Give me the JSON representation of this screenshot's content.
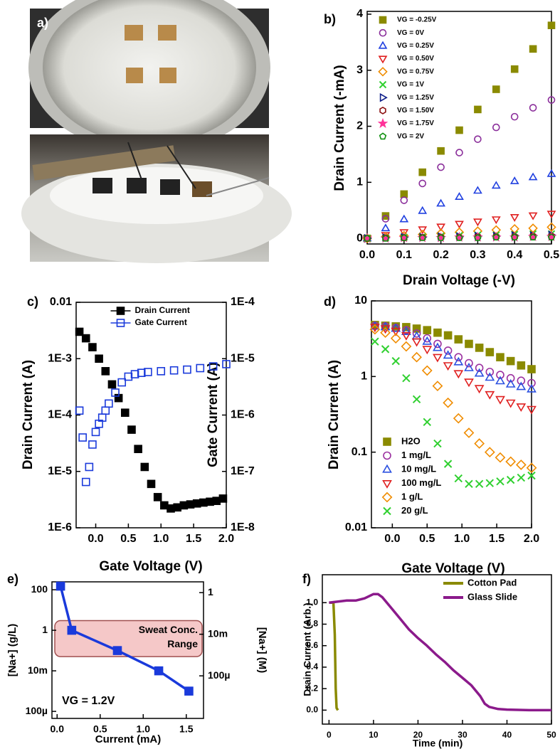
{
  "photo_label": "a)",
  "chart_data": [
    {
      "type": "scatter",
      "label": "b)",
      "xlabel": "Drain Voltage (-V)",
      "ylabel": "Drain Current (-mA)",
      "x": [
        0,
        0.05,
        0.1,
        0.15,
        0.2,
        0.25,
        0.3,
        0.35,
        0.4,
        0.45,
        0.5
      ],
      "xlim": [
        0,
        0.5
      ],
      "ylim": [
        -0.1,
        4.05
      ],
      "xticks": [
        {
          "value": 0,
          "label": "0.0"
        },
        0.1,
        0.2,
        0.3,
        0.4,
        0.5
      ],
      "yticks": [
        0,
        1,
        2,
        3,
        4
      ],
      "legend": "upper left",
      "series": [
        {
          "name": "VG = -0.25V",
          "color": "#8a8a00",
          "marker": "square",
          "filled": true,
          "values": [
            0,
            0.4,
            0.79,
            1.18,
            1.56,
            1.93,
            2.3,
            2.66,
            3.02,
            3.38,
            3.8
          ]
        },
        {
          "name": "VG = 0V",
          "color": "#8b2f9b",
          "marker": "circle",
          "filled": false,
          "values": [
            0,
            0.35,
            0.68,
            0.98,
            1.27,
            1.53,
            1.77,
            1.98,
            2.17,
            2.33,
            2.47
          ]
        },
        {
          "name": "VG = 0.25V",
          "color": "#2040e0",
          "marker": "triangle-up",
          "filled": false,
          "values": [
            0,
            0.18,
            0.34,
            0.49,
            0.62,
            0.74,
            0.85,
            0.94,
            1.02,
            1.09,
            1.15
          ]
        },
        {
          "name": "VG = 0.50V",
          "color": "#e02020",
          "marker": "triangle-down",
          "filled": false,
          "values": [
            0,
            0.06,
            0.11,
            0.16,
            0.21,
            0.26,
            0.3,
            0.34,
            0.38,
            0.41,
            0.44
          ]
        },
        {
          "name": "VG = 0.75V",
          "color": "#f08c00",
          "marker": "diamond",
          "filled": false,
          "values": [
            0,
            0.03,
            0.05,
            0.07,
            0.09,
            0.11,
            0.13,
            0.15,
            0.17,
            0.18,
            0.2
          ]
        },
        {
          "name": "VG = 1V",
          "color": "#30d030",
          "marker": "x",
          "filled": false,
          "values": [
            0,
            0.01,
            0.02,
            0.03,
            0.04,
            0.05,
            0.06,
            0.06,
            0.07,
            0.08,
            0.08
          ]
        },
        {
          "name": "VG = 1.25V",
          "color": "#10208a",
          "marker": "triangle-right",
          "filled": false,
          "values": [
            0,
            0.01,
            0.02,
            0.02,
            0.03,
            0.03,
            0.04,
            0.04,
            0.05,
            0.05,
            0.06
          ]
        },
        {
          "name": "VG = 1.50V",
          "color": "#8b1010",
          "marker": "hexagon",
          "filled": false,
          "values": [
            0,
            0.01,
            0.01,
            0.02,
            0.02,
            0.02,
            0.03,
            0.03,
            0.03,
            0.04,
            0.04
          ]
        },
        {
          "name": "VG = 1.75V",
          "color": "#ff3399",
          "marker": "star",
          "filled": true,
          "values": [
            0,
            0,
            0.01,
            0.01,
            0.01,
            0.02,
            0.02,
            0.02,
            0.02,
            0.03,
            0.03
          ]
        },
        {
          "name": "VG = 2V",
          "color": "#109010",
          "marker": "pentagon",
          "filled": false,
          "values": [
            0,
            0,
            0.01,
            0.01,
            0.01,
            0.01,
            0.01,
            0.02,
            0.02,
            0.02,
            0.02
          ]
        }
      ]
    },
    {
      "type": "scatter",
      "label": "c)",
      "xlabel": "Gate Voltage (V)",
      "ylabel": "Drain Current (A)",
      "y2label": "Gate Current (A)",
      "xlim": [
        -0.3,
        2.0
      ],
      "ylim": [
        1e-06,
        0.01
      ],
      "y2lim": [
        1e-08,
        0.0001
      ],
      "ylog": true,
      "y2log": true,
      "xticks": [
        {
          "value": 0,
          "label": "0.0"
        },
        0.5,
        {
          "value": 1,
          "label": "1.0"
        },
        1.5,
        {
          "value": 2,
          "label": "2.0"
        }
      ],
      "yticks": [
        0.01,
        {
          "value": 0.001,
          "label": "1E-3"
        },
        {
          "value": 0.0001,
          "label": "1E-4"
        },
        {
          "value": 1e-05,
          "label": "1E-5"
        },
        {
          "value": 1e-06,
          "label": "1E-6"
        }
      ],
      "y2ticks": [
        {
          "value": 0.0001,
          "label": "1E-4"
        },
        {
          "value": 1e-05,
          "label": "1E-5"
        },
        {
          "value": 1e-06,
          "label": "1E-6"
        },
        {
          "value": 1e-07,
          "label": "1E-7"
        },
        {
          "value": 1e-08,
          "label": "1E-8"
        }
      ],
      "legend": "upper center",
      "series": [
        {
          "name": "Drain Current",
          "color": "#000000",
          "marker": "square",
          "filled": true,
          "x": [
            -0.25,
            -0.15,
            -0.05,
            0.05,
            0.15,
            0.25,
            0.35,
            0.45,
            0.55,
            0.65,
            0.75,
            0.85,
            0.95,
            1.05,
            1.15,
            1.25,
            1.35,
            1.45,
            1.55,
            1.65,
            1.75,
            1.85,
            1.95
          ],
          "values": [
            0.003,
            0.0023,
            0.0016,
            0.001,
            0.0006,
            0.00035,
            0.0002,
            0.00011,
            5.5e-05,
            2.5e-05,
            1.2e-05,
            6e-06,
            3.5e-06,
            2.5e-06,
            2.2e-06,
            2.3e-06,
            2.5e-06,
            2.6e-06,
            2.7e-06,
            2.8e-06,
            2.9e-06,
            3e-06,
            3.3e-06
          ]
        },
        {
          "name": "Gate Current",
          "color": "#1a3adb",
          "marker": "square",
          "filled": false,
          "axis": "y2",
          "x": [
            -0.25,
            -0.2,
            -0.15,
            -0.1,
            -0.05,
            0,
            0.05,
            0.1,
            0.15,
            0.2,
            0.3,
            0.4,
            0.5,
            0.6,
            0.7,
            0.8,
            1.0,
            1.2,
            1.4,
            1.6,
            1.8,
            2.0
          ],
          "values": [
            1.2e-06,
            4e-07,
            6.5e-08,
            1.2e-07,
            3e-07,
            5e-07,
            7e-07,
            9e-07,
            1.2e-06,
            1.6e-06,
            2.5e-06,
            3.8e-06,
            4.8e-06,
            5.3e-06,
            5.6e-06,
            5.8e-06,
            6e-06,
            6.2e-06,
            6.4e-06,
            6.8e-06,
            7.3e-06,
            8e-06
          ]
        }
      ]
    },
    {
      "type": "scatter",
      "label": "d)",
      "xlabel": "Gate Voltage (V)",
      "ylabel": "Drain Current (A)",
      "x": [
        -0.25,
        -0.1,
        0.05,
        0.2,
        0.35,
        0.5,
        0.65,
        0.8,
        0.95,
        1.1,
        1.25,
        1.4,
        1.55,
        1.7,
        1.85,
        2.0
      ],
      "xlim": [
        -0.3,
        2.0
      ],
      "ylim": [
        0.01,
        10
      ],
      "ylog": true,
      "xticks": [
        {
          "value": 0,
          "label": "0.0"
        },
        0.5,
        {
          "value": 1,
          "label": "1.0"
        },
        1.5,
        {
          "value": 2,
          "label": "2.0"
        }
      ],
      "yticks": [
        10,
        1,
        0.1,
        0.01
      ],
      "legend": "lower left",
      "series": [
        {
          "name": "H2O",
          "color": "#8a8a00",
          "marker": "square",
          "filled": true,
          "values": [
            4.8,
            4.7,
            4.6,
            4.5,
            4.3,
            4.1,
            3.8,
            3.5,
            3.1,
            2.7,
            2.4,
            2.1,
            1.8,
            1.6,
            1.4,
            1.25
          ]
        },
        {
          "name": "1 mg/L",
          "color": "#9b30a0",
          "marker": "circle",
          "filled": false,
          "values": [
            4.7,
            4.6,
            4.4,
            4.1,
            3.7,
            3.2,
            2.7,
            2.2,
            1.8,
            1.5,
            1.3,
            1.15,
            1.05,
            0.95,
            0.88,
            0.82
          ]
        },
        {
          "name": "10 mg/L",
          "color": "#2b50e0",
          "marker": "triangle-up",
          "filled": false,
          "values": [
            4.6,
            4.5,
            4.3,
            3.9,
            3.4,
            2.9,
            2.4,
            1.9,
            1.55,
            1.3,
            1.1,
            0.97,
            0.87,
            0.79,
            0.73,
            0.68
          ]
        },
        {
          "name": "100 mg/L",
          "color": "#e02020",
          "marker": "triangle-down",
          "filled": false,
          "values": [
            4.5,
            4.3,
            4.0,
            3.5,
            2.9,
            2.3,
            1.8,
            1.4,
            1.1,
            0.85,
            0.7,
            0.58,
            0.5,
            0.45,
            0.4,
            0.37
          ]
        },
        {
          "name": "1 g/L",
          "color": "#f08c00",
          "marker": "diamond",
          "filled": false,
          "values": [
            4.2,
            3.8,
            3.2,
            2.5,
            1.8,
            1.2,
            0.75,
            0.45,
            0.28,
            0.18,
            0.13,
            0.1,
            0.085,
            0.075,
            0.068,
            0.062
          ]
        },
        {
          "name": "20 g/L",
          "color": "#30d030",
          "marker": "x",
          "filled": false,
          "values": [
            2.9,
            2.3,
            1.6,
            0.95,
            0.5,
            0.25,
            0.13,
            0.07,
            0.045,
            0.038,
            0.038,
            0.039,
            0.041,
            0.043,
            0.046,
            0.049
          ]
        }
      ]
    },
    {
      "type": "line",
      "label": "e)",
      "xlabel": "Current (mA)",
      "ylabel": "[Na+] (g/L)",
      "y2label": "[Na+] (M)",
      "annotation": "VG = 1.2V",
      "x": [
        0.04,
        0.17,
        0.7,
        1.18,
        1.53
      ],
      "xlim": [
        -0.06,
        1.7
      ],
      "ylim": [
        4.5e-05,
        245
      ],
      "y2lim": [
        9e-07,
        3.3
      ],
      "ylog": true,
      "y2log": true,
      "xticks": [
        {
          "value": 0,
          "label": "0.0"
        },
        0.5,
        {
          "value": 1,
          "label": "1.0"
        },
        1.5
      ],
      "yticks": [
        100,
        1,
        {
          "value": 0.01,
          "label": "10m"
        },
        {
          "value": 0.0001,
          "label": "100µ"
        }
      ],
      "y2ticks": [
        1,
        {
          "value": 0.01,
          "label": "10m"
        },
        {
          "value": 0.0001,
          "label": "100µ"
        }
      ],
      "shade": {
        "ymin": 0.05,
        "ymax": 3,
        "color": "#f5c8c8",
        "lines": [
          "Sweat Conc.",
          "Range"
        ]
      },
      "series": [
        {
          "color": "#1a3adb",
          "marker": "square",
          "filled": true,
          "values": [
            150,
            1,
            0.1,
            0.01,
            0.001
          ]
        }
      ]
    },
    {
      "type": "line",
      "label": "f)",
      "xlabel": "Time (min)",
      "ylabel": "Drain Current (Arb.)",
      "xlim": [
        -1.5,
        50
      ],
      "ylim": [
        -0.13,
        1.26
      ],
      "xticks": [
        0,
        10,
        20,
        30,
        40,
        50
      ],
      "yticks": [
        {
          "value": 0,
          "label": "0.0"
        },
        0.2,
        0.4,
        0.6,
        0.8,
        {
          "value": 1,
          "label": "1.0"
        }
      ],
      "legend": "upper right",
      "series": [
        {
          "name": "Cotton Pad",
          "color": "#8a8a00",
          "x": [
            0,
            1,
            1.3,
            1.5,
            1.7,
            2
          ],
          "values": [
            1,
            1,
            0.7,
            0.2,
            0.02,
            0
          ]
        },
        {
          "name": "Glass Slide",
          "color": "#8b1a8b",
          "x": [
            0,
            2,
            4,
            6,
            8,
            10,
            11,
            12,
            14,
            16,
            18,
            20,
            22,
            24,
            26,
            28,
            30,
            32,
            34,
            35,
            36,
            38,
            40,
            45,
            50
          ],
          "values": [
            1.0,
            1.01,
            1.02,
            1.02,
            1.04,
            1.08,
            1.08,
            1.05,
            0.95,
            0.85,
            0.75,
            0.67,
            0.6,
            0.52,
            0.45,
            0.37,
            0.3,
            0.23,
            0.13,
            0.06,
            0.03,
            0.01,
            0.005,
            0,
            0
          ]
        }
      ]
    }
  ]
}
